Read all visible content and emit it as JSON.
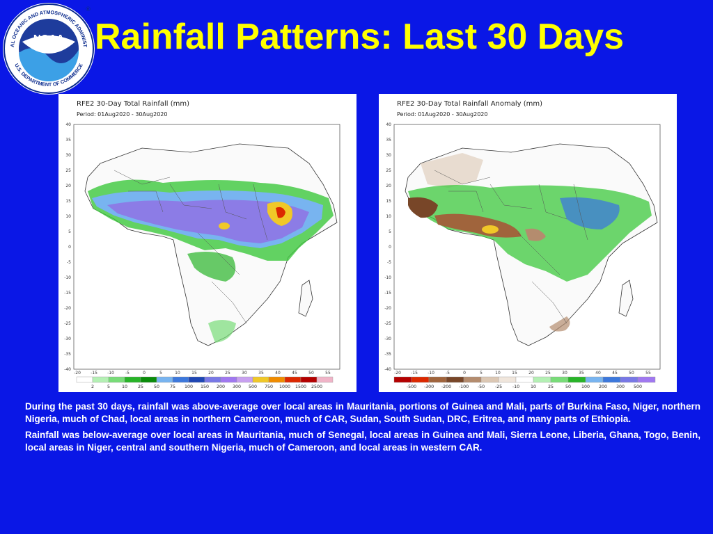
{
  "header": {
    "title": "Rainfall Patterns: Last 30 Days",
    "logo": {
      "icon": "noaa-logo",
      "wordmark": "NOAA",
      "ring_text_top": "NATIONAL OCEANIC AND ATMOSPHERIC ADMINISTRATION",
      "ring_text_bottom": "U.S. DEPARTMENT OF COMMERCE"
    }
  },
  "maps": [
    {
      "title": "RFE2 30-Day Total Rainfall (mm)",
      "period": "Period: 01Aug2020 - 30Aug2020",
      "y_ticks": [
        "40",
        "35",
        "30",
        "25",
        "20",
        "15",
        "10",
        "5",
        "0",
        "-5",
        "-10",
        "-15",
        "-20",
        "-25",
        "-30",
        "-35",
        "-40"
      ],
      "x_ticks": [
        "-20",
        "-15",
        "-10",
        "-5",
        "0",
        "5",
        "10",
        "15",
        "20",
        "25",
        "30",
        "35",
        "40",
        "45",
        "50",
        "55"
      ],
      "legend_labels": [
        "2",
        "5",
        "10",
        "25",
        "50",
        "75",
        "100",
        "150",
        "200",
        "300",
        "500",
        "750",
        "1000",
        "1500",
        "2500"
      ],
      "legend_colors": [
        "#ffffff",
        "#b4f0b4",
        "#78dc78",
        "#28b428",
        "#0a8c0a",
        "#78b4f0",
        "#3c78dc",
        "#1e46b4",
        "#7878e6",
        "#a078f0",
        "#c8a0f0",
        "#f0c828",
        "#f08c00",
        "#dc2800",
        "#b40000",
        "#f0b4c8"
      ]
    },
    {
      "title": "RFE2 30-Day Total Rainfall Anomaly (mm)",
      "period": "Period: 01Aug2020 - 30Aug2020",
      "y_ticks": [
        "40",
        "35",
        "30",
        "25",
        "20",
        "15",
        "10",
        "5",
        "0",
        "-5",
        "-10",
        "-15",
        "-20",
        "-25",
        "-30",
        "-35",
        "-40"
      ],
      "x_ticks": [
        "-20",
        "-15",
        "-10",
        "-5",
        "0",
        "5",
        "10",
        "15",
        "20",
        "25",
        "30",
        "35",
        "40",
        "45",
        "50",
        "55"
      ],
      "legend_labels": [
        "-500",
        "-300",
        "-200",
        "-100",
        "-50",
        "-25",
        "-10",
        "10",
        "25",
        "50",
        "100",
        "200",
        "300",
        "500"
      ],
      "legend_colors": [
        "#b40000",
        "#dc2800",
        "#a0643c",
        "#784628",
        "#b48c6e",
        "#dcc8b4",
        "#f0e6dc",
        "#ffffff",
        "#b4f0b4",
        "#78dc78",
        "#28b428",
        "#78b4f0",
        "#3c78dc",
        "#7878e6",
        "#a078f0"
      ]
    }
  ],
  "text": {
    "paragraph1": "During the past 30 days, rainfall was above-average over local areas in Mauritania, portions of Guinea and Mali, parts of Burkina Faso, Niger, northern Nigeria, much of Chad, local areas in northern Cameroon, much of CAR, Sudan, South Sudan, DRC, Eritrea, and many parts of Ethiopia.",
    "paragraph2": "Rainfall was below-average over local areas in Mauritania, much of Senegal, local areas in Guinea and Mali, Sierra Leone, Liberia, Ghana, Togo, Benin, local areas in Niger, central and southern Nigeria, much of Cameroon, and local areas in western CAR."
  }
}
